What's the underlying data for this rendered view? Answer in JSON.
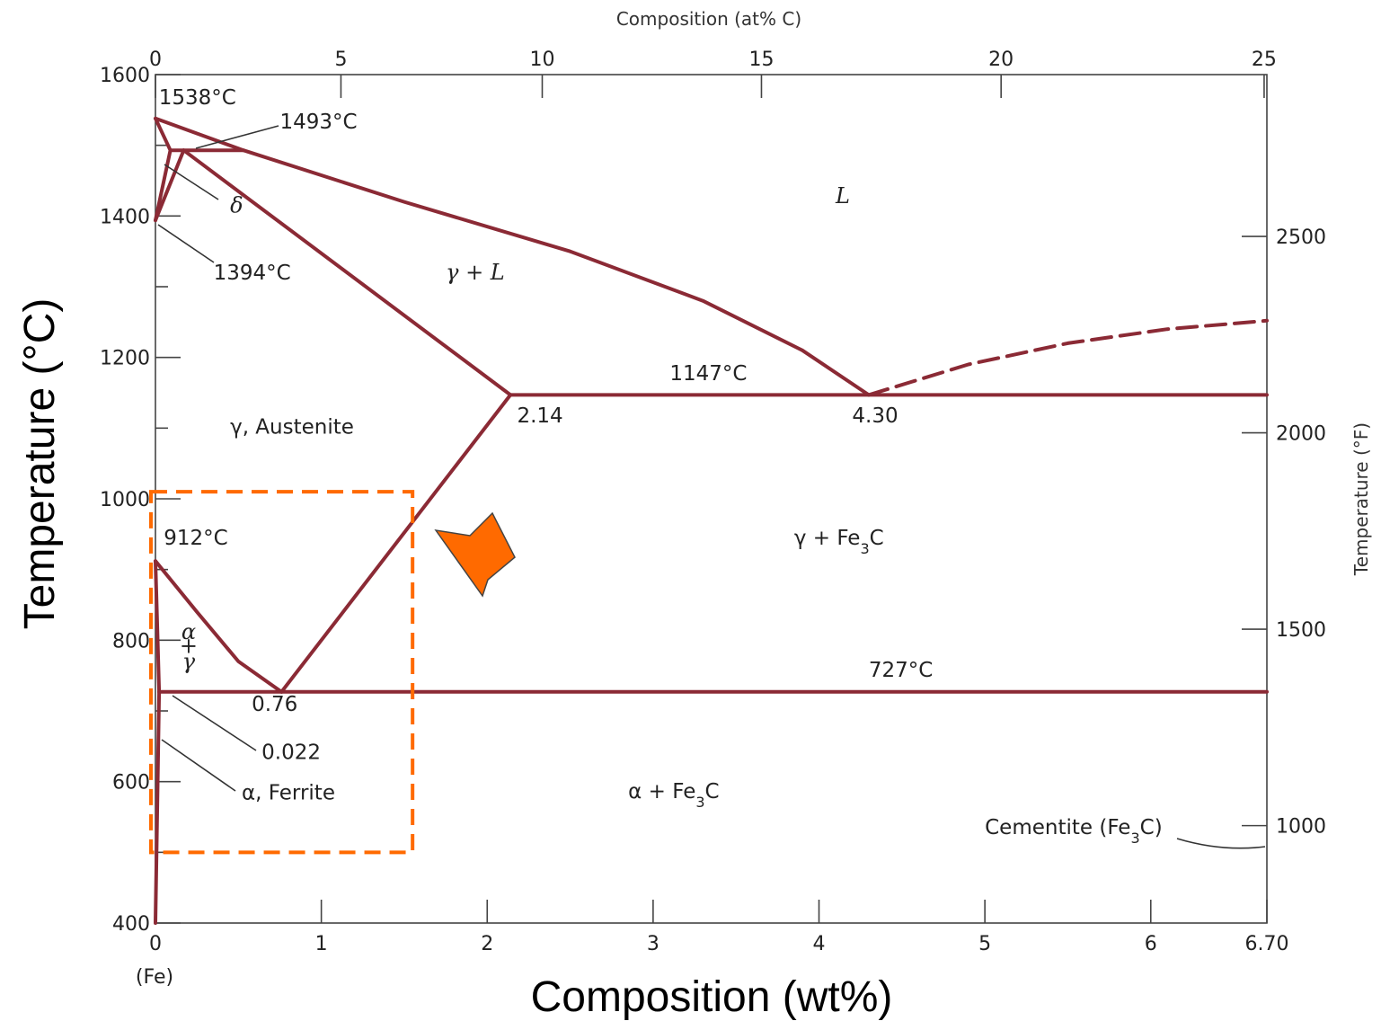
{
  "chart_data": {
    "type": "line",
    "title": "",
    "xlabel": "Composition (wt%)",
    "ylabel": "Temperature (°C)",
    "top_xlabel": "Composition (at% C)",
    "right_ylabel": "Temperature (°F)",
    "xlim": [
      0,
      6.7
    ],
    "ylim": [
      400,
      1600
    ],
    "x_ticks": [
      "0",
      "1",
      "2",
      "3",
      "4",
      "5",
      "6",
      "6.70"
    ],
    "x_origin_note": "(Fe)",
    "y_ticks": [
      "400",
      "600",
      "800",
      "1000",
      "1200",
      "1400",
      "1600"
    ],
    "top_ticks": [
      "0",
      "5",
      "10",
      "15",
      "20",
      "25"
    ],
    "right_ticks": [
      "1000",
      "1500",
      "2000",
      "2500"
    ],
    "series": [
      {
        "values": [
          [
            0,
            1538
          ],
          [
            0.09,
            1493
          ],
          [
            0.17,
            1493
          ],
          [
            0.53,
            1493
          ]
        ]
      },
      {
        "values": [
          [
            0,
            1538
          ],
          [
            0.53,
            1493
          ],
          [
            1.5,
            1420
          ],
          [
            2.5,
            1350
          ],
          [
            3.3,
            1280
          ],
          [
            3.9,
            1210
          ],
          [
            4.3,
            1147
          ]
        ]
      },
      {
        "values": [
          [
            0,
            1394
          ],
          [
            0.09,
            1493
          ]
        ]
      },
      {
        "values": [
          [
            0,
            1394
          ],
          [
            0.17,
            1493
          ]
        ]
      },
      {
        "values": [
          [
            0.17,
            1493
          ],
          [
            2.14,
            1147
          ]
        ]
      },
      {
        "values": [
          [
            2.14,
            1147
          ],
          [
            6.7,
            1147
          ]
        ]
      },
      {
        "values": [
          [
            4.3,
            1147
          ],
          [
            4.9,
            1190
          ],
          [
            5.5,
            1220
          ],
          [
            6.1,
            1240
          ],
          [
            6.7,
            1252
          ]
        ]
      },
      {
        "values": [
          [
            2.14,
            1147
          ],
          [
            0.76,
            727
          ]
        ]
      },
      {
        "values": [
          [
            0,
            912
          ],
          [
            0.25,
            840
          ],
          [
            0.5,
            770
          ],
          [
            0.76,
            727
          ]
        ]
      },
      {
        "values": [
          [
            0,
            912
          ],
          [
            0.022,
            727
          ]
        ]
      },
      {
        "values": [
          [
            0.022,
            727
          ],
          [
            6.7,
            727
          ]
        ]
      },
      {
        "values": [
          [
            0.022,
            727
          ],
          [
            0,
            400
          ]
        ]
      }
    ],
    "annotations": [
      {
        "text": "1538°C",
        "x": 0.02,
        "y": 1558
      },
      {
        "text": "1493°C",
        "x": 0.75,
        "y": 1524
      },
      {
        "text": "δ",
        "x": 0.45,
        "y": 1405
      },
      {
        "text": "1394°C",
        "x": 0.35,
        "y": 1310
      },
      {
        "text": "L",
        "x": 4.1,
        "y": 1418
      },
      {
        "text": "γ + L",
        "x": 1.75,
        "y": 1310
      },
      {
        "text": "1147°C",
        "x": 3.1,
        "y": 1168
      },
      {
        "text": "2.14",
        "x": 2.18,
        "y": 1108
      },
      {
        "text": "4.30",
        "x": 4.2,
        "y": 1108
      },
      {
        "text": "γ, Austenite",
        "x": 0.45,
        "y": 1092
      },
      {
        "text": "912°C",
        "x": 0.05,
        "y": 935
      },
      {
        "text": "γ + Fe3C",
        "x": 3.85,
        "y": 935
      },
      {
        "text": "α",
        "x": 0.2,
        "y": 802
      },
      {
        "text": "+",
        "x": 0.2,
        "y": 782
      },
      {
        "text": "γ",
        "x": 0.2,
        "y": 760
      },
      {
        "text": "727°C",
        "x": 4.3,
        "y": 748
      },
      {
        "text": "0.76",
        "x": 0.58,
        "y": 700
      },
      {
        "text": "0.022",
        "x": 0.64,
        "y": 632
      },
      {
        "text": "α, Ferrite",
        "x": 0.52,
        "y": 575
      },
      {
        "text": "α + Fe3C",
        "x": 2.85,
        "y": 577
      },
      {
        "text": "Cementite (Fe3C)",
        "x": 5.0,
        "y": 526
      }
    ],
    "highlight_box": {
      "x": [
        0,
        1.55
      ],
      "y": [
        500,
        1010
      ]
    },
    "grid": false,
    "legend": "none"
  },
  "colors": {
    "phase_line": "#8B2A35",
    "highlight": "#FF6A00",
    "arrow_fill": "#FF6A00",
    "arrow_stroke": "#444444"
  }
}
